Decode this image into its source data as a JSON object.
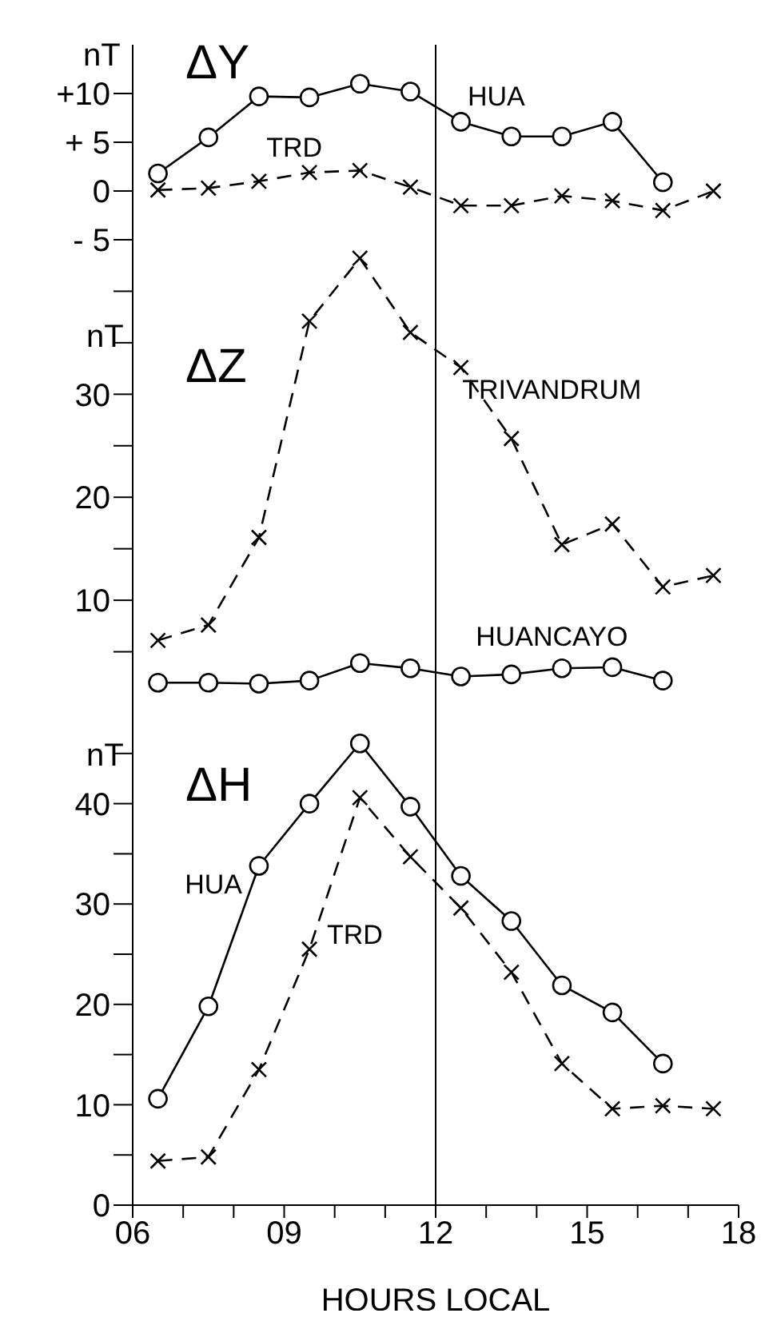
{
  "chart_data": [
    {
      "type": "line",
      "title": "ΔY",
      "ylabel": "nT",
      "x": [
        6.5,
        7.5,
        8.5,
        9.5,
        10.5,
        11.5,
        12.5,
        13.5,
        14.5,
        15.5,
        16.5,
        17.5
      ],
      "xlim": [
        6,
        18
      ],
      "ylim": [
        -5,
        15
      ],
      "yticks": [
        {
          "value": 10,
          "label": "+10"
        },
        {
          "value": 5,
          "label": "+ 5"
        },
        0,
        {
          "value": -5,
          "label": "- 5"
        }
      ],
      "tick_labels": "y",
      "ref_lines": [
        {
          "axis": "x",
          "value": 12
        }
      ],
      "series": [
        {
          "name": "HUA",
          "color": "#000000",
          "marker": "circle",
          "line_style": "solid",
          "values": [
            1.8,
            5.5,
            9.7,
            9.6,
            11,
            10.2,
            7.1,
            5.6,
            5.6,
            7.1,
            0.9,
            null
          ]
        },
        {
          "name": "TRD",
          "color": "#000000",
          "marker": "cross",
          "line_style": "dashed",
          "values": [
            0.1,
            0.3,
            1,
            1.9,
            2.1,
            0.4,
            -1.5,
            -1.5,
            -0.5,
            -1,
            -2,
            0
          ]
        }
      ]
    },
    {
      "type": "line",
      "title": "ΔZ",
      "ylabel": "nT",
      "x": [
        6.5,
        7.5,
        8.5,
        9.5,
        10.5,
        11.5,
        12.5,
        13.5,
        14.5,
        15.5,
        16.5,
        17.5
      ],
      "xlim": [
        6,
        18
      ],
      "ylim": [
        0,
        45
      ],
      "yticks": [
        {
          "value": 5,
          "label": null
        },
        10,
        {
          "value": 15,
          "label": null
        },
        20,
        {
          "value": 25,
          "label": null
        },
        30,
        {
          "value": 35,
          "label": null
        },
        {
          "value": 40,
          "label": null
        }
      ],
      "tick_labels": "y",
      "ref_lines": [
        {
          "axis": "x",
          "value": 12
        }
      ],
      "series": [
        {
          "name": "TRIVANDRUM",
          "color": "#000000",
          "marker": "cross",
          "line_style": "dashed",
          "values": [
            6.1,
            7.6,
            16.1,
            37.1,
            43.2,
            36,
            32.6,
            25.7,
            15.4,
            17.4,
            11.3,
            12.4
          ]
        },
        {
          "name": "HUANCAYO",
          "color": "#000000",
          "marker": "circle",
          "line_style": "solid",
          "values": [
            2,
            2,
            1.9,
            2.2,
            3.9,
            3.4,
            2.6,
            2.8,
            3.4,
            3.5,
            2.2,
            null
          ]
        }
      ]
    },
    {
      "type": "line",
      "title": "ΔH",
      "ylabel": "nT",
      "xlabel": "HOURS  LOCAL",
      "x": [
        6.5,
        7.5,
        8.5,
        9.5,
        10.5,
        11.5,
        12.5,
        13.5,
        14.5,
        15.5,
        16.5,
        17.5
      ],
      "xlim": [
        6,
        18
      ],
      "xticks": [
        {
          "value": 6,
          "label": "06"
        },
        {
          "value": 7,
          "label": null
        },
        {
          "value": 8,
          "label": null
        },
        {
          "value": 9,
          "label": "09"
        },
        {
          "value": 10,
          "label": null
        },
        {
          "value": 11,
          "label": null
        },
        12,
        {
          "value": 13,
          "label": null
        },
        {
          "value": 14,
          "label": null
        },
        15,
        {
          "value": 16,
          "label": null
        },
        {
          "value": 17,
          "label": null
        },
        18
      ],
      "ylim": [
        0,
        50
      ],
      "yticks": [
        0,
        {
          "value": 5,
          "label": null
        },
        10,
        {
          "value": 15,
          "label": null
        },
        20,
        {
          "value": 25,
          "label": null
        },
        30,
        {
          "value": 35,
          "label": null
        },
        40,
        {
          "value": 45,
          "label": null
        }
      ],
      "ref_lines": [
        {
          "axis": "x",
          "value": 12
        }
      ],
      "series": [
        {
          "name": "HUA",
          "color": "#000000",
          "marker": "circle",
          "line_style": "solid",
          "values": [
            10.6,
            19.8,
            33.8,
            40,
            46,
            39.7,
            32.8,
            28.3,
            21.9,
            19.2,
            14.1,
            null
          ]
        },
        {
          "name": "TRD",
          "color": "#000000",
          "marker": "cross",
          "line_style": "dashed",
          "values": [
            4.4,
            4.8,
            13.5,
            25.5,
            40.6,
            34.7,
            29.6,
            23.2,
            14.1,
            9.6,
            9.9,
            9.6
          ]
        }
      ]
    }
  ]
}
